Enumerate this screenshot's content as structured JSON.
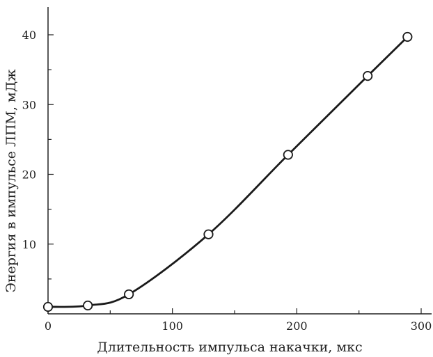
{
  "chart_data": {
    "type": "line",
    "title": "",
    "xlabel": "Длительность импульса накачки, мкс",
    "ylabel": "Энергия в импульсе ЛПМ, мДж",
    "xlim": [
      0,
      300
    ],
    "ylim": [
      0,
      40
    ],
    "grid": false,
    "x_ticks": [
      "0",
      "100",
      "200",
      "300"
    ],
    "y_ticks": [
      "10",
      "20",
      "30",
      "40"
    ],
    "series": [
      {
        "x": [
          0,
          32,
          65,
          129,
          193,
          257,
          289
        ],
        "y": [
          1.0,
          1.2,
          2.8,
          11.4,
          22.8,
          34.1,
          39.7
        ]
      }
    ],
    "colors": {
      "line": "#1a1a1a",
      "marker_fill": "#ffffff",
      "axis": "#222222"
    }
  }
}
